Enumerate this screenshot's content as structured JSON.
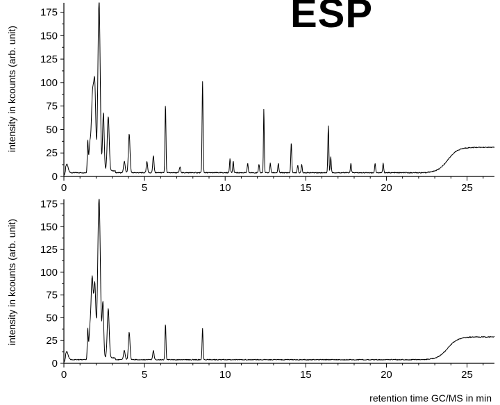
{
  "title": "ESP",
  "chart_data": [
    {
      "type": "line",
      "ylabel": "intensity in kcounts (arb. unit)",
      "xlabel": "",
      "xlim": [
        0,
        26.7
      ],
      "ylim": [
        0,
        185
      ],
      "xticks": [
        "0",
        "5",
        "10",
        "15",
        "20",
        "25"
      ],
      "yticks": [
        "0",
        "25",
        "50",
        "75",
        "100",
        "125",
        "150",
        "175"
      ],
      "baseline": 4,
      "drift": {
        "start": 22.5,
        "mid": 23.8,
        "end": 26.7,
        "level": 31
      },
      "peaks": [
        {
          "x": 0.18,
          "y": 9,
          "w": 0.08
        },
        {
          "x": 1.48,
          "y": 32,
          "w": 0.03
        },
        {
          "x": 1.6,
          "y": 24,
          "w": 0.05
        },
        {
          "x": 1.78,
          "y": 82,
          "w": 0.08
        },
        {
          "x": 1.92,
          "y": 78,
          "w": 0.06
        },
        {
          "x": 2.18,
          "y": 183,
          "w": 0.07
        },
        {
          "x": 2.45,
          "y": 62,
          "w": 0.05
        },
        {
          "x": 2.75,
          "y": 58,
          "w": 0.06
        },
        {
          "x": 3.75,
          "y": 12,
          "w": 0.05
        },
        {
          "x": 4.05,
          "y": 41,
          "w": 0.05
        },
        {
          "x": 5.15,
          "y": 12,
          "w": 0.04
        },
        {
          "x": 5.55,
          "y": 18,
          "w": 0.04
        },
        {
          "x": 6.3,
          "y": 72,
          "w": 0.03
        },
        {
          "x": 7.2,
          "y": 6,
          "w": 0.04
        },
        {
          "x": 8.6,
          "y": 97,
          "w": 0.03
        },
        {
          "x": 10.3,
          "y": 15,
          "w": 0.03
        },
        {
          "x": 10.5,
          "y": 12,
          "w": 0.03
        },
        {
          "x": 11.4,
          "y": 10,
          "w": 0.03
        },
        {
          "x": 12.1,
          "y": 9,
          "w": 0.03
        },
        {
          "x": 12.4,
          "y": 68,
          "w": 0.025
        },
        {
          "x": 12.8,
          "y": 10,
          "w": 0.03
        },
        {
          "x": 13.3,
          "y": 10,
          "w": 0.03
        },
        {
          "x": 14.1,
          "y": 32,
          "w": 0.03
        },
        {
          "x": 14.5,
          "y": 8,
          "w": 0.03
        },
        {
          "x": 14.75,
          "y": 9,
          "w": 0.03
        },
        {
          "x": 16.4,
          "y": 50,
          "w": 0.03
        },
        {
          "x": 16.55,
          "y": 17,
          "w": 0.03
        },
        {
          "x": 17.8,
          "y": 10,
          "w": 0.03
        },
        {
          "x": 19.3,
          "y": 10,
          "w": 0.03
        },
        {
          "x": 19.8,
          "y": 10,
          "w": 0.03
        }
      ]
    },
    {
      "type": "line",
      "ylabel": "intensity in kcounts (arb. unit)",
      "xlabel": "retention time GC/MS in min",
      "xlim": [
        0,
        26.7
      ],
      "ylim": [
        0,
        180
      ],
      "xticks": [
        "0",
        "5",
        "10",
        "15",
        "20",
        "25"
      ],
      "yticks": [
        "0",
        "25",
        "50",
        "75",
        "100",
        "125",
        "150",
        "175"
      ],
      "baseline": 4,
      "drift": {
        "start": 22.5,
        "mid": 23.8,
        "end": 26.7,
        "level": 29
      },
      "peaks": [
        {
          "x": 0.18,
          "y": 9,
          "w": 0.08
        },
        {
          "x": 1.48,
          "y": 32,
          "w": 0.03
        },
        {
          "x": 1.6,
          "y": 25,
          "w": 0.05
        },
        {
          "x": 1.75,
          "y": 88,
          "w": 0.07
        },
        {
          "x": 1.92,
          "y": 78,
          "w": 0.06
        },
        {
          "x": 2.18,
          "y": 177,
          "w": 0.08
        },
        {
          "x": 2.42,
          "y": 60,
          "w": 0.05
        },
        {
          "x": 2.75,
          "y": 54,
          "w": 0.06
        },
        {
          "x": 3.75,
          "y": 10,
          "w": 0.05
        },
        {
          "x": 4.05,
          "y": 30,
          "w": 0.05
        },
        {
          "x": 5.55,
          "y": 10,
          "w": 0.04
        },
        {
          "x": 6.3,
          "y": 39,
          "w": 0.03
        },
        {
          "x": 8.6,
          "y": 34,
          "w": 0.03
        }
      ]
    }
  ]
}
